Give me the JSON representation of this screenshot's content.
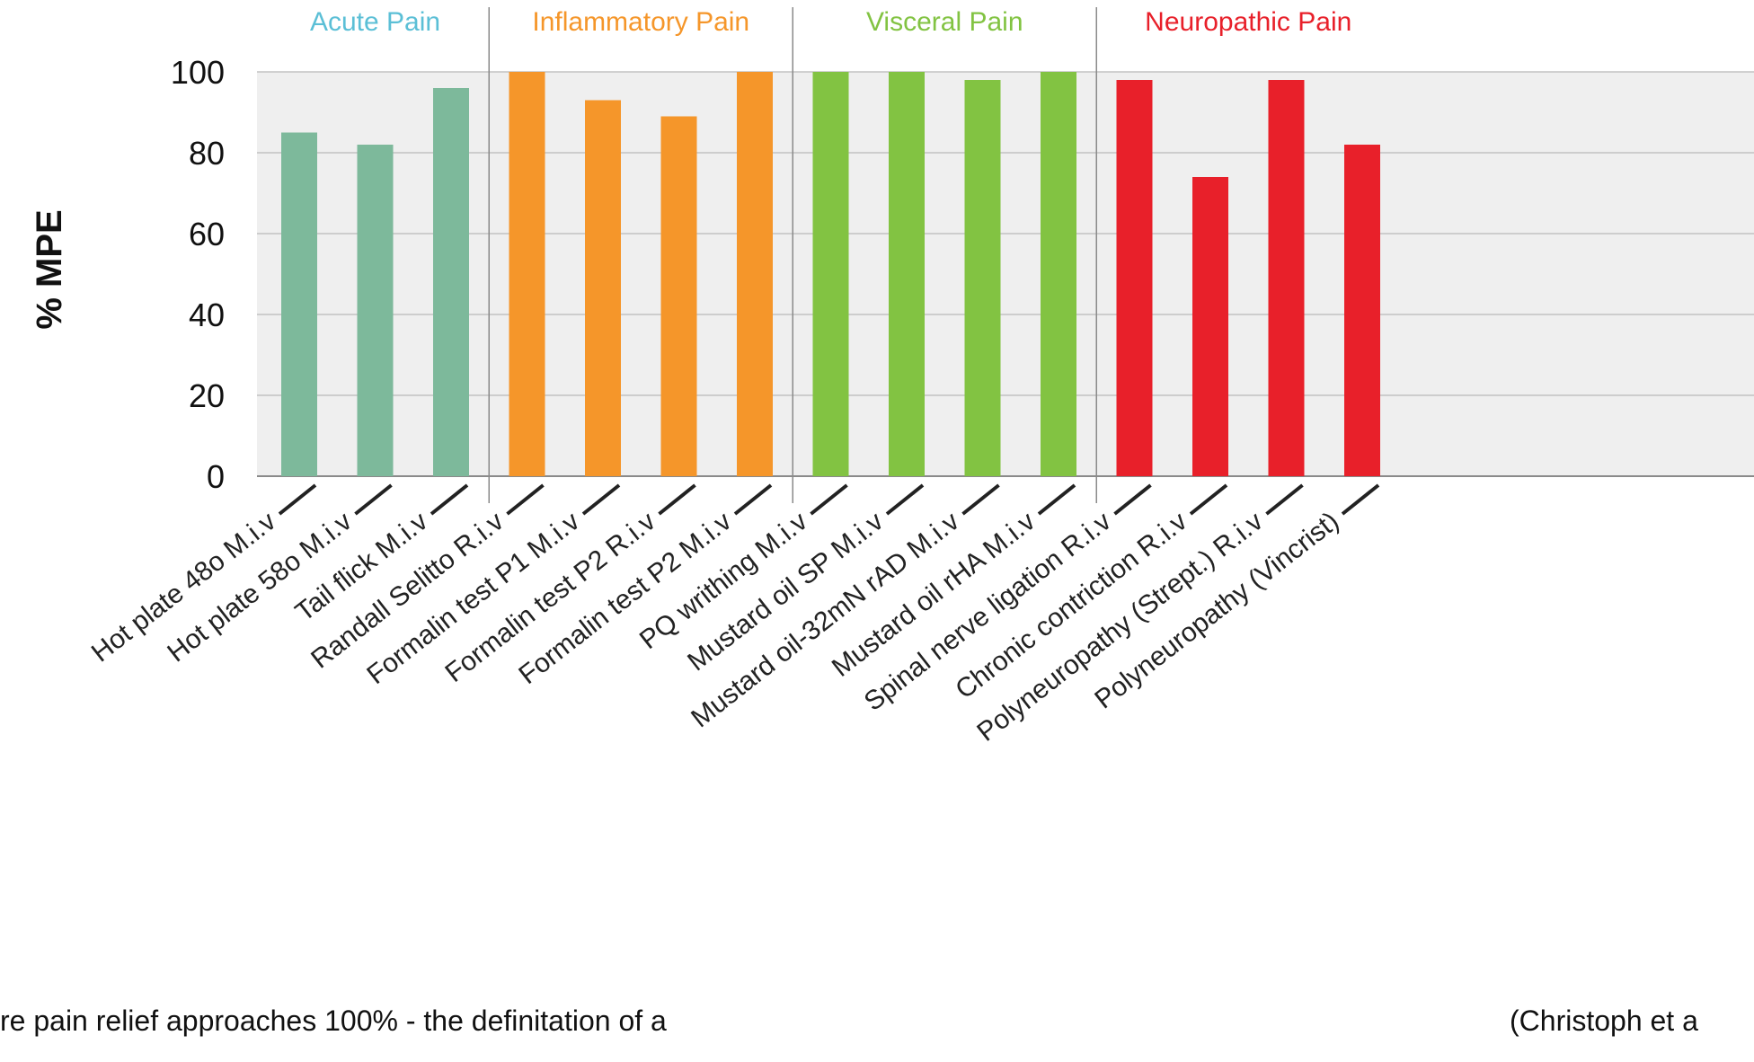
{
  "chart_data": {
    "type": "bar",
    "ylabel": "% MPE",
    "ylim": [
      0,
      100
    ],
    "yticks": [
      0,
      20,
      40,
      60,
      80,
      100
    ],
    "grid": true,
    "groups": [
      {
        "name": "Acute Pain",
        "color": "#5bbfd6",
        "bar_color": "#7db99b",
        "categories": [
          "Hot plate 48o M.i.v",
          "Hot plate 58o M.i.v",
          "Tail flick M.i.v"
        ],
        "values": [
          85,
          82,
          96
        ]
      },
      {
        "name": "Inflammatory Pain",
        "color": "#f5962a",
        "bar_color": "#f5962a",
        "categories": [
          "Randall Selitto R.i.v",
          "Formalin test P1 M.i.v",
          "Formalin test P2 R.i.v",
          "Formalin test P2 M.i.v"
        ],
        "values": [
          100,
          93,
          89,
          100
        ]
      },
      {
        "name": "Visceral Pain",
        "color": "#82c342",
        "bar_color": "#82c342",
        "categories": [
          "PQ writhing M.i.v",
          "Mustard oil SP M.i.v",
          "Mustard oil-32mN rAD M.i.v",
          "Mustard oil rHA M.i.v"
        ],
        "values": [
          100,
          100,
          98,
          100
        ]
      },
      {
        "name": "Neuropathic Pain",
        "color": "#e8202a",
        "bar_color": "#e8202a",
        "categories": [
          "Spinal nerve ligation R.i.v",
          "Chronic contriction R.i.v",
          "Polyneuropathy (Strept.) R.i.v",
          "Polyneuropathy (Vincrist)"
        ],
        "values": [
          98,
          74,
          98,
          82
        ]
      }
    ]
  },
  "captions": {
    "left": "re pain relief approaches 100% - the definitation of a",
    "right": "(Christoph et a"
  }
}
